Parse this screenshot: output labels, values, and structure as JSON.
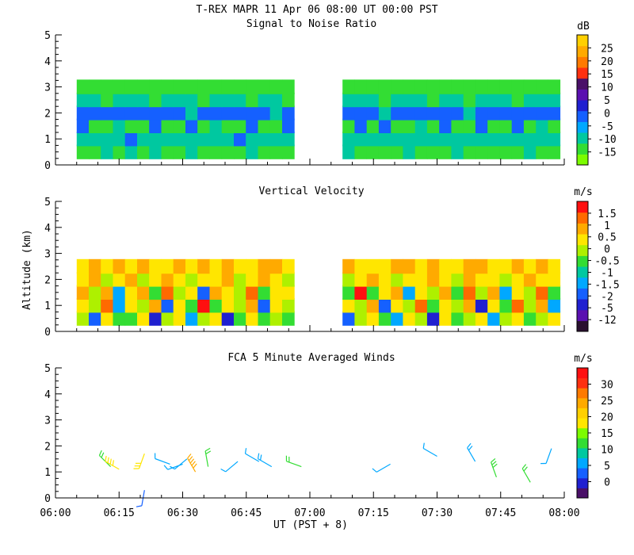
{
  "title": "T-REX  MAPR 11 Apr 06  08:00 UT  00:00  PST",
  "xlabel": "UT  (PST + 8)",
  "ylabel": "Altitude (km)",
  "x_ticks": [
    "06:00",
    "06:15",
    "06:30",
    "06:45",
    "07:00",
    "07:15",
    "07:30",
    "07:45",
    "08:00"
  ],
  "chart_data": [
    {
      "type": "heatmap",
      "title": "Signal to Noise Ratio",
      "unit": "dB",
      "ylim": [
        0,
        5
      ],
      "y_ticks": [
        0,
        1,
        2,
        3,
        4,
        5
      ],
      "xlim": [
        "06:00",
        "08:00"
      ],
      "data_gap": [
        "06:58",
        "07:06"
      ],
      "colorbar": {
        "labels": [
          "-15",
          "-10",
          "-5",
          "0",
          "5",
          "10",
          "15",
          "20",
          "25"
        ],
        "colors": [
          "#7cfc00",
          "#33dd33",
          "#00c8a0",
          "#00a8ff",
          "#1560ff",
          "#2020d0",
          "#5a10b0",
          "#4a1068",
          "#ff3010",
          "#ff7a00",
          "#ffaa00",
          "#ffd000"
        ]
      },
      "cells": [
        {
          "y": 0.5,
          "values": [
            -12,
            -11,
            -10,
            -11,
            -9,
            -12,
            -10,
            -11,
            -12,
            -10,
            -11,
            -12,
            -12,
            -11,
            -10,
            -11,
            -12,
            -11,
            -12,
            -10,
            -12,
            -11,
            -10,
            -12,
            -12,
            -11,
            -12,
            -10,
            -11,
            -12,
            -12,
            -10,
            -11,
            -12,
            -11,
            -12,
            -12,
            -10,
            -11,
            -12
          ]
        },
        {
          "y": 1.0,
          "values": [
            -8,
            -6,
            -9,
            -7,
            -5,
            -8,
            -9,
            -6,
            -7,
            -8,
            -9,
            -8,
            -6,
            -5,
            -7,
            -9,
            -8,
            -6,
            -7,
            -8,
            -9,
            -7,
            -6,
            -9,
            -8,
            -7,
            -6,
            -8,
            -9,
            -7,
            -8,
            -6,
            -9,
            -8,
            -7,
            -6,
            -9,
            -8,
            -7,
            -8
          ]
        },
        {
          "y": 1.5,
          "values": [
            -3,
            -14,
            -14,
            -6,
            -14,
            -14,
            -4,
            -14,
            -14,
            -3,
            -14,
            -7,
            -14,
            -14,
            -5,
            -14,
            -14,
            -4,
            -14,
            -14,
            -6,
            -14,
            -14,
            -3,
            -14,
            -5,
            -14,
            -14,
            -7,
            -14,
            -4,
            -14,
            -14,
            -5,
            -14,
            -14,
            -3,
            -14,
            -6,
            -14
          ]
        },
        {
          "y": 2.0,
          "values": [
            -2,
            -4,
            -5,
            -3,
            -1,
            -4,
            -5,
            -2,
            -3,
            -6,
            -4,
            -1,
            -3,
            -5,
            -2,
            -4,
            -6,
            -3,
            -1,
            -4,
            -2,
            -5,
            -3,
            -4,
            -2,
            -6,
            -3,
            -1,
            -5,
            -4,
            -2,
            -3,
            -6,
            -4,
            -1,
            -5,
            -2,
            -3,
            -4,
            -2
          ]
        },
        {
          "y": 2.5,
          "values": [
            -10,
            -9,
            -11,
            -8,
            -10,
            -9,
            -11,
            -10,
            -8,
            -9,
            -11,
            -10,
            -9,
            -8,
            -11,
            -10,
            -9,
            -11,
            -8,
            -10,
            -9,
            -11,
            -10,
            -8,
            -9,
            -11,
            -10,
            -9,
            -8,
            -11,
            -10,
            -9,
            -11,
            -8,
            -10,
            -9,
            -11,
            -10,
            -8,
            -9
          ]
        },
        {
          "y": 3.0,
          "values": [
            -13,
            -12,
            -13,
            -14,
            -12,
            -13,
            -14,
            -13,
            -12,
            -14,
            -13,
            -12,
            -13,
            -14,
            -12,
            -13,
            -14,
            -13,
            -12,
            -14,
            -13,
            -12,
            -13,
            -14,
            -12,
            -13,
            -14,
            -13,
            -12,
            -14,
            -13,
            -12,
            -13,
            -14,
            -12,
            -13,
            -14,
            -13,
            -12,
            -14
          ]
        }
      ]
    },
    {
      "type": "heatmap",
      "title": "Vertical Velocity",
      "unit": "m/s",
      "ylim": [
        0,
        5
      ],
      "y_ticks": [
        0,
        1,
        2,
        3,
        4,
        5
      ],
      "xlim": [
        "06:00",
        "08:00"
      ],
      "data_gap": [
        "06:58",
        "07:06"
      ],
      "colorbar": {
        "labels": [
          "-12",
          "-5",
          "-2",
          "-1.5",
          "-1",
          "-0.5",
          "0",
          "0.5",
          "1",
          "1.5"
        ],
        "colors": [
          "#2a1030",
          "#5a10b0",
          "#2020d0",
          "#1560ff",
          "#00a8ff",
          "#00c8a0",
          "#33dd33",
          "#aef000",
          "#ffe600",
          "#ffaa00",
          "#ff6a00",
          "#ff1010"
        ]
      },
      "cells": [
        {
          "y": 0.5,
          "values": [
            -0.4,
            -2,
            0.2,
            -1,
            -0.6,
            0.3,
            -3,
            -0.5,
            0.1,
            -1.2,
            -0.3,
            0.4,
            -2.5,
            -0.6,
            0.2,
            -1,
            -0.4,
            -0.8,
            0.3,
            -1.5,
            -0.5,
            0.1,
            -2,
            -0.3,
            0.2,
            -0.7,
            -1.2,
            0.4,
            -0.5,
            -3,
            0.1,
            -0.6,
            -0.2,
            0.3,
            -1.1,
            -0.4,
            0.2,
            -0.9,
            -0.3,
            0.1
          ]
        },
        {
          "y": 1.0,
          "values": [
            0.1,
            -0.5,
            1.2,
            -1.5,
            0.4,
            -0.2,
            0.8,
            -2,
            0.3,
            -0.6,
            1.5,
            -1,
            0.2,
            -0.4,
            0.6,
            -1.8,
            0.1,
            -0.3,
            1.1,
            -0.7,
            0.5,
            -1.4,
            0.2,
            -0.1,
            0.9,
            -1.6,
            0.3,
            -0.5,
            1.3,
            -0.8,
            0.4,
            -0.2,
            0.7,
            -2.2,
            0.1,
            -0.6,
            1,
            -0.3,
            0.5,
            -1.2
          ]
        },
        {
          "y": 1.5,
          "values": [
            0.6,
            -0.3,
            0.9,
            -1.1,
            0.2,
            0.5,
            -0.8,
            1.4,
            -0.4,
            0.3,
            -1.7,
            0.8,
            0.1,
            -0.5,
            1.2,
            -0.9,
            0.4,
            0.2,
            -1.3,
            0.7,
            -0.2,
            0.6,
            -1,
            1.5,
            -0.6,
            0.3,
            0.9,
            -1.4,
            0.2,
            -0.4,
            0.8,
            -0.7,
            1.1,
            -0.3,
            0.5,
            -1.2,
            0.4,
            -0.5,
            1.3,
            -0.8
          ]
        },
        {
          "y": 2.0,
          "values": [
            0.3,
            0.5,
            -0.2,
            0.4,
            0.6,
            -0.1,
            0.2,
            0.5,
            0.3,
            -0.3,
            0.4,
            0.2,
            0.6,
            -0.2,
            0.1,
            0.5,
            0.3,
            -0.4,
            0.2,
            0.4,
            0.1,
            0.6,
            -0.1,
            0.3,
            0.5,
            0.2,
            -0.3,
            0.4,
            0.1,
            0.6,
            0.2,
            -0.2,
            0.5,
            0.3,
            0.4,
            -0.1,
            0.2,
            0.6,
            0.3,
            0.1
          ]
        },
        {
          "y": 2.5,
          "values": [
            0.4,
            0.6,
            0.2,
            0.5,
            0.3,
            0.7,
            0.1,
            0.4,
            0.6,
            0.2,
            0.5,
            0.3,
            0.7,
            0.4,
            0.2,
            0.6,
            0.5,
            0.3,
            0.4,
            0.7,
            0.2,
            0.5,
            0.6,
            0.3,
            0.4,
            0.2,
            0.7,
            0.5,
            0.3,
            0.6,
            0.4,
            0.2,
            0.5,
            0.7,
            0.3,
            0.4,
            0.6,
            0.2,
            0.5,
            0.3
          ]
        }
      ]
    },
    {
      "type": "barbs",
      "title": "FCA 5 Minute Averaged Winds",
      "unit": "m/s",
      "ylim": [
        0,
        5
      ],
      "y_ticks": [
        0,
        1,
        2,
        3,
        4,
        5
      ],
      "xlim": [
        "06:00",
        "08:00"
      ],
      "colorbar": {
        "labels": [
          "0",
          "5",
          "10",
          "15",
          "20",
          "25",
          "30"
        ],
        "colors": [
          "#4a1068",
          "#2020d0",
          "#1560ff",
          "#00a8ff",
          "#00c8a0",
          "#33dd33",
          "#7cfc00",
          "#ffe600",
          "#ffd000",
          "#ffaa00",
          "#ff7a00",
          "#ff3010",
          "#ff1010"
        ]
      },
      "barbs": [
        {
          "time": "06:13",
          "alt": 1.2,
          "speed": 11,
          "dir": 315
        },
        {
          "time": "06:15",
          "alt": 1.1,
          "speed": 19,
          "dir": 300
        },
        {
          "time": "06:21",
          "alt": 1.7,
          "speed": 15,
          "dir": 200
        },
        {
          "time": "06:21",
          "alt": 0.3,
          "speed": 4,
          "dir": 190
        },
        {
          "time": "06:27",
          "alt": 1.3,
          "speed": 6,
          "dir": 290
        },
        {
          "time": "06:30",
          "alt": 1.3,
          "speed": 5,
          "dir": 250
        },
        {
          "time": "06:31",
          "alt": 1.5,
          "speed": 7,
          "dir": 230
        },
        {
          "time": "06:33",
          "alt": 1.0,
          "speed": 24,
          "dir": 330
        },
        {
          "time": "06:36",
          "alt": 1.2,
          "speed": 11,
          "dir": 350
        },
        {
          "time": "06:43",
          "alt": 1.4,
          "speed": 7,
          "dir": 230
        },
        {
          "time": "06:48",
          "alt": 1.4,
          "speed": 7,
          "dir": 300
        },
        {
          "time": "06:51",
          "alt": 1.2,
          "speed": 9,
          "dir": 300
        },
        {
          "time": "06:58",
          "alt": 1.2,
          "speed": 10,
          "dir": 290
        },
        {
          "time": "07:19",
          "alt": 1.3,
          "speed": 6,
          "dir": 240
        },
        {
          "time": "07:30",
          "alt": 1.6,
          "speed": 7,
          "dir": 300
        },
        {
          "time": "07:39",
          "alt": 1.4,
          "speed": 8,
          "dir": 330
        },
        {
          "time": "07:44",
          "alt": 0.8,
          "speed": 14,
          "dir": 340
        },
        {
          "time": "07:52",
          "alt": 0.6,
          "speed": 12,
          "dir": 330
        },
        {
          "time": "07:57",
          "alt": 1.9,
          "speed": 7,
          "dir": 200
        }
      ]
    }
  ]
}
